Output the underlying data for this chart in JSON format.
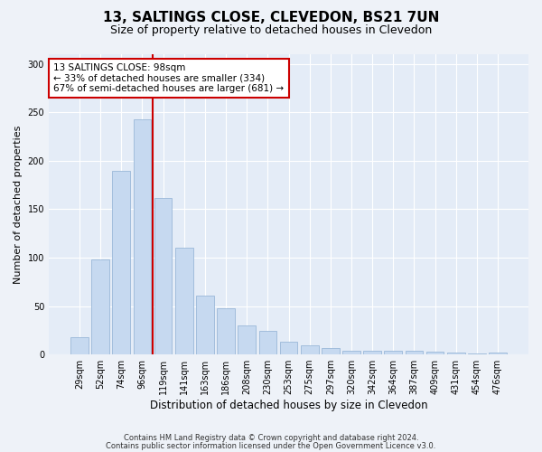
{
  "title1": "13, SALTINGS CLOSE, CLEVEDON, BS21 7UN",
  "title2": "Size of property relative to detached houses in Clevedon",
  "xlabel": "Distribution of detached houses by size in Clevedon",
  "ylabel": "Number of detached properties",
  "categories": [
    "29sqm",
    "52sqm",
    "74sqm",
    "96sqm",
    "119sqm",
    "141sqm",
    "163sqm",
    "186sqm",
    "208sqm",
    "230sqm",
    "253sqm",
    "275sqm",
    "297sqm",
    "320sqm",
    "342sqm",
    "364sqm",
    "387sqm",
    "409sqm",
    "431sqm",
    "454sqm",
    "476sqm"
  ],
  "values": [
    18,
    98,
    190,
    243,
    162,
    110,
    61,
    48,
    30,
    24,
    13,
    9,
    7,
    4,
    4,
    4,
    4,
    3,
    2,
    1,
    2
  ],
  "bar_color": "#c6d9f0",
  "bar_edge_color": "#9ab8d8",
  "vline_x": 3.5,
  "vline_color": "#cc0000",
  "annotation_text": "13 SALTINGS CLOSE: 98sqm\n← 33% of detached houses are smaller (334)\n67% of semi-detached houses are larger (681) →",
  "annotation_box_color": "#ffffff",
  "annotation_box_edge": "#cc0000",
  "ylim": [
    0,
    310
  ],
  "yticks": [
    0,
    50,
    100,
    150,
    200,
    250,
    300
  ],
  "footer1": "Contains HM Land Registry data © Crown copyright and database right 2024.",
  "footer2": "Contains public sector information licensed under the Open Government Licence v3.0.",
  "bg_color": "#eef2f8",
  "plot_bg_color": "#e4ecf7",
  "title1_fontsize": 11,
  "title2_fontsize": 9,
  "ylabel_fontsize": 8,
  "xlabel_fontsize": 8.5,
  "tick_fontsize": 7,
  "annotation_fontsize": 7.5,
  "footer_fontsize": 6
}
